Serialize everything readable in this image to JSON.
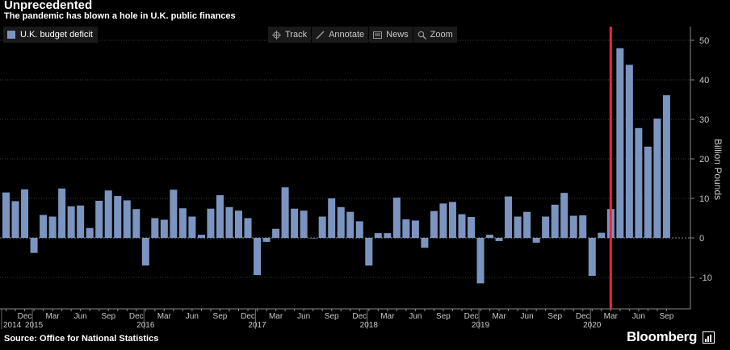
{
  "header": {
    "title": "Unprecedented",
    "subtitle": "The pandemic has blown a hole in U.K. public finances"
  },
  "legend": {
    "label": "U.K. budget deficit",
    "color": "#7b95c0"
  },
  "toolbar": [
    {
      "label": "Track",
      "icon": "crosshair-icon"
    },
    {
      "label": "Annotate",
      "icon": "pencil-icon"
    },
    {
      "label": "News",
      "icon": "news-icon"
    },
    {
      "label": "Zoom",
      "icon": "magnifier-icon"
    }
  ],
  "footer": {
    "source": "Source: Office for National Statistics",
    "brand": "Bloomberg"
  },
  "chart_data": {
    "type": "bar",
    "ylabel": "Billion Pounds",
    "ylim": [
      -17,
      54
    ],
    "yticks": [
      -10,
      0,
      10,
      20,
      30,
      40,
      50
    ],
    "grid": true,
    "y_axis_side": "right",
    "bar_color": "#7b95c0",
    "highlight_line": {
      "x": "2020-03",
      "color": "#ff1f3d"
    },
    "x": [
      "2014-10",
      "2014-11",
      "2014-12",
      "2015-01",
      "2015-02",
      "2015-03",
      "2015-04",
      "2015-05",
      "2015-06",
      "2015-07",
      "2015-08",
      "2015-09",
      "2015-10",
      "2015-11",
      "2015-12",
      "2016-01",
      "2016-02",
      "2016-03",
      "2016-04",
      "2016-05",
      "2016-06",
      "2016-07",
      "2016-08",
      "2016-09",
      "2016-10",
      "2016-11",
      "2016-12",
      "2017-01",
      "2017-02",
      "2017-03",
      "2017-04",
      "2017-05",
      "2017-06",
      "2017-07",
      "2017-08",
      "2017-09",
      "2017-10",
      "2017-11",
      "2017-12",
      "2018-01",
      "2018-02",
      "2018-03",
      "2018-04",
      "2018-05",
      "2018-06",
      "2018-07",
      "2018-08",
      "2018-09",
      "2018-10",
      "2018-11",
      "2018-12",
      "2019-01",
      "2019-02",
      "2019-03",
      "2019-04",
      "2019-05",
      "2019-06",
      "2019-07",
      "2019-08",
      "2019-09",
      "2019-10",
      "2019-11",
      "2019-12",
      "2020-01",
      "2020-02",
      "2020-03",
      "2020-04",
      "2020-05",
      "2020-06",
      "2020-07",
      "2020-08",
      "2020-09"
    ],
    "series": [
      {
        "name": "U.K. budget deficit",
        "values": [
          11.5,
          9.3,
          12.3,
          -3.8,
          5.8,
          5.4,
          12.5,
          8.0,
          8.2,
          2.5,
          9.4,
          12.0,
          10.6,
          9.5,
          7.3,
          -7.0,
          5.0,
          4.6,
          12.2,
          7.5,
          5.4,
          0.8,
          7.4,
          10.8,
          7.8,
          6.9,
          5.0,
          -9.4,
          -1.0,
          2.3,
          12.8,
          7.4,
          6.9,
          -0.1,
          5.4,
          10.0,
          7.8,
          6.6,
          4.2,
          -7.0,
          1.2,
          1.2,
          10.2,
          4.7,
          4.4,
          -2.5,
          6.8,
          8.7,
          9.1,
          6.0,
          5.3,
          -11.5,
          0.8,
          -0.8,
          10.5,
          5.4,
          6.6,
          -1.2,
          5.4,
          8.4,
          11.4,
          5.6,
          5.7,
          -9.6,
          1.3,
          7.3,
          48.0,
          43.8,
          27.8,
          23.1,
          30.2,
          36.1
        ]
      }
    ],
    "x_tick_labels": [
      {
        "x": "2014-12",
        "label": "Dec"
      },
      {
        "x": "2015-03",
        "label": "Mar"
      },
      {
        "x": "2015-06",
        "label": "Jun"
      },
      {
        "x": "2015-09",
        "label": "Sep"
      },
      {
        "x": "2015-12",
        "label": "Dec"
      },
      {
        "x": "2016-03",
        "label": "Mar"
      },
      {
        "x": "2016-06",
        "label": "Jun"
      },
      {
        "x": "2016-09",
        "label": "Sep"
      },
      {
        "x": "2016-12",
        "label": "Dec"
      },
      {
        "x": "2017-03",
        "label": "Mar"
      },
      {
        "x": "2017-06",
        "label": "Jun"
      },
      {
        "x": "2017-09",
        "label": "Sep"
      },
      {
        "x": "2017-12",
        "label": "Dec"
      },
      {
        "x": "2018-03",
        "label": "Mar"
      },
      {
        "x": "2018-06",
        "label": "Jun"
      },
      {
        "x": "2018-09",
        "label": "Sep"
      },
      {
        "x": "2018-12",
        "label": "Dec"
      },
      {
        "x": "2019-03",
        "label": "Mar"
      },
      {
        "x": "2019-06",
        "label": "Jun"
      },
      {
        "x": "2019-09",
        "label": "Sep"
      },
      {
        "x": "2019-12",
        "label": "Dec"
      },
      {
        "x": "2020-03",
        "label": "Mar"
      },
      {
        "x": "2020-06",
        "label": "Jun"
      },
      {
        "x": "2020-09",
        "label": "Sep"
      }
    ],
    "year_labels": [
      {
        "x": "2014-10",
        "label": "2014"
      },
      {
        "x": "2015-01",
        "label": "2015"
      },
      {
        "x": "2016-01",
        "label": "2016"
      },
      {
        "x": "2017-01",
        "label": "2017"
      },
      {
        "x": "2018-01",
        "label": "2018"
      },
      {
        "x": "2019-01",
        "label": "2019"
      },
      {
        "x": "2020-01",
        "label": "2020"
      }
    ]
  }
}
